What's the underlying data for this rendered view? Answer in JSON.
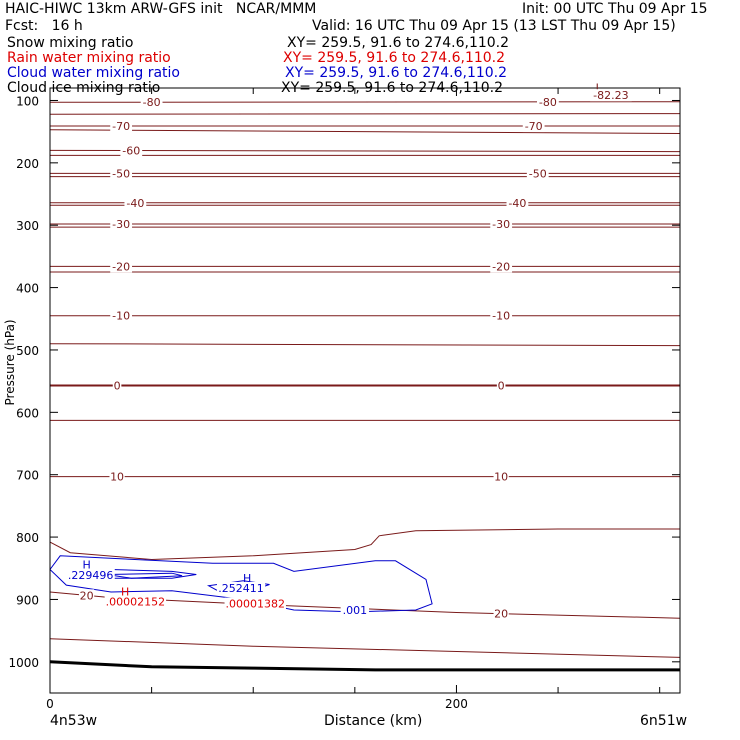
{
  "header": {
    "title_left": "HAIC-HIWC 13km ARW-GFS init   NCAR/MMM",
    "init": "Init: 00 UTC Thu 09 Apr 15",
    "fcst": "Fcst:   16 h",
    "valid": "Valid: 16 UTC Thu 09 Apr 15 (13 LST Thu 09 Apr 15)"
  },
  "legend": [
    {
      "label": "Snow mixing ratio",
      "xy": "XY= 259.5, 91.6 to 274.6,110.2",
      "color": "#000000"
    },
    {
      "label": "Rain water mixing ratio",
      "xy": "XY= 259.5, 91.6 to 274.6,110.2",
      "color": "#dd0000"
    },
    {
      "label": "Cloud water mixing ratio",
      "xy": "XY= 259.5, 91.6 to 274.6,110.2",
      "color": "#0000cc"
    },
    {
      "label": "Cloud ice mixing ratio",
      "xy": "XY= 259.5, 91.6 to 274.6,110.2",
      "color": "#000000"
    }
  ],
  "colors": {
    "temperature": "#7a1a1a",
    "rain": "#dd0000",
    "cloud_water": "#0000cc",
    "ground": "#000000"
  },
  "chart_data": {
    "type": "line",
    "xlabel": "Distance (km)",
    "ylabel": "Pressure (hPa)",
    "xlim": [
      0,
      310
    ],
    "ylim": [
      1050,
      80
    ],
    "x_ticks": [
      "0",
      "200"
    ],
    "x_tick_values": [
      0,
      200
    ],
    "x_minor_ticks": [
      50,
      100,
      150,
      250,
      300
    ],
    "y_ticks": [
      "100",
      "200",
      "300",
      "400",
      "500",
      "600",
      "700",
      "800",
      "900",
      "1000"
    ],
    "y_tick_values": [
      100,
      200,
      300,
      400,
      500,
      600,
      700,
      800,
      900,
      1000
    ],
    "endpoints": [
      "4n53w",
      "6n51w"
    ],
    "isotherms": [
      {
        "level": -80,
        "labels": [
          "-80",
          "-80"
        ],
        "label_x": [
          50,
          245
        ],
        "points": [
          [
            0,
            103
          ],
          [
            310,
            102
          ]
        ]
      },
      {
        "level": -75,
        "labels": [],
        "label_x": [],
        "points": [
          [
            0,
            122
          ],
          [
            310,
            121
          ]
        ]
      },
      {
        "level": -70,
        "labels": [
          "-70",
          "-70"
        ],
        "label_x": [
          35,
          238
        ],
        "points": [
          [
            0,
            141
          ],
          [
            310,
            141
          ]
        ]
      },
      {
        "level": -65,
        "labels": [],
        "label_x": [],
        "points": [
          [
            0,
            147
          ],
          [
            310,
            153
          ]
        ]
      },
      {
        "level": -60,
        "labels": [
          "-60"
        ],
        "label_x": [
          40
        ],
        "points": [
          [
            0,
            180
          ],
          [
            310,
            182
          ]
        ]
      },
      {
        "level": -55,
        "labels": [],
        "label_x": [],
        "points": [
          [
            0,
            188
          ],
          [
            310,
            188
          ]
        ]
      },
      {
        "level": -50,
        "labels": [
          "-50",
          "-50"
        ],
        "label_x": [
          35,
          240
        ],
        "points": [
          [
            0,
            217
          ],
          [
            310,
            217
          ]
        ]
      },
      {
        "level": -45,
        "labels": [],
        "label_x": [],
        "points": [
          [
            0,
            222
          ],
          [
            310,
            222
          ]
        ]
      },
      {
        "level": -40,
        "labels": [
          "-40",
          "-40"
        ],
        "label_x": [
          42,
          230
        ],
        "points": [
          [
            0,
            264
          ],
          [
            310,
            264
          ]
        ]
      },
      {
        "level": -35,
        "labels": [],
        "label_x": [],
        "points": [
          [
            0,
            268
          ],
          [
            310,
            268
          ]
        ]
      },
      {
        "level": -30,
        "labels": [
          "-30",
          "-30"
        ],
        "label_x": [
          35,
          222
        ],
        "points": [
          [
            0,
            298
          ],
          [
            310,
            298
          ]
        ]
      },
      {
        "level": -25,
        "labels": [],
        "label_x": [],
        "points": [
          [
            0,
            303
          ],
          [
            310,
            303
          ]
        ]
      },
      {
        "level": -20,
        "labels": [
          "-20",
          "-20"
        ],
        "label_x": [
          35,
          222
        ],
        "points": [
          [
            0,
            366
          ],
          [
            310,
            366
          ]
        ]
      },
      {
        "level": -15,
        "labels": [],
        "label_x": [],
        "points": [
          [
            0,
            375
          ],
          [
            310,
            375
          ]
        ]
      },
      {
        "level": -10,
        "labels": [
          "-10",
          "-10"
        ],
        "label_x": [
          35,
          222
        ],
        "points": [
          [
            0,
            445
          ],
          [
            310,
            445
          ]
        ]
      },
      {
        "level": -5,
        "labels": [],
        "label_x": [],
        "points": [
          [
            0,
            490
          ],
          [
            310,
            493
          ]
        ]
      },
      {
        "level": 0,
        "labels": [
          "0",
          "0"
        ],
        "label_x": [
          33,
          222
        ],
        "points": [
          [
            0,
            557
          ],
          [
            310,
            557
          ]
        ]
      },
      {
        "level": 5,
        "labels": [],
        "label_x": [],
        "points": [
          [
            0,
            613
          ],
          [
            310,
            613
          ]
        ]
      },
      {
        "level": 10,
        "labels": [
          "10",
          "10"
        ],
        "label_x": [
          33,
          222
        ],
        "points": [
          [
            0,
            703
          ],
          [
            310,
            703
          ]
        ]
      },
      {
        "level": 15,
        "labels": [],
        "label_x": [],
        "points": [
          [
            0,
            808
          ],
          [
            10,
            825
          ],
          [
            50,
            836
          ],
          [
            100,
            830
          ],
          [
            150,
            820
          ],
          [
            158,
            812
          ],
          [
            162,
            798
          ],
          [
            180,
            790
          ],
          [
            250,
            787
          ],
          [
            310,
            787
          ]
        ]
      },
      {
        "level": 20,
        "labels": [
          "20",
          "20"
        ],
        "label_x": [
          18,
          222
        ],
        "points": [
          [
            0,
            888
          ],
          [
            30,
            897
          ],
          [
            100,
            908
          ],
          [
            200,
            921
          ],
          [
            310,
            930
          ]
        ]
      },
      {
        "level": 25,
        "labels": [],
        "label_x": [],
        "points": [
          [
            0,
            963
          ],
          [
            100,
            975
          ],
          [
            310,
            993
          ]
        ]
      }
    ],
    "isotherm_extrema": [
      {
        "label": "L",
        "value": "-82.23"
      }
    ],
    "surface_pressure": [
      [
        0,
        1000
      ],
      [
        50,
        1008
      ],
      [
        100,
        1010
      ],
      [
        160,
        1013
      ],
      [
        310,
        1013
      ]
    ],
    "cloud_water": {
      "max_labels": [
        {
          "label": "H",
          "value": ".229496"
        },
        {
          "label": "H",
          "value": ".252411"
        }
      ],
      "contour_labels": [
        ".001"
      ],
      "outer_contour": [
        [
          0,
          852
        ],
        [
          5,
          830
        ],
        [
          80,
          842
        ],
        [
          110,
          842
        ],
        [
          120,
          855
        ],
        [
          160,
          838
        ],
        [
          170,
          838
        ],
        [
          185,
          868
        ],
        [
          188,
          907
        ],
        [
          180,
          917
        ],
        [
          150,
          920
        ],
        [
          120,
          917
        ],
        [
          110,
          910
        ],
        [
          90,
          898
        ],
        [
          60,
          886
        ],
        [
          30,
          888
        ],
        [
          8,
          877
        ]
      ],
      "inner_contours": [
        [
          [
            20,
            858
          ],
          [
            30,
            852
          ],
          [
            60,
            855
          ],
          [
            72,
            860
          ],
          [
            60,
            866
          ],
          [
            30,
            866
          ]
        ],
        [
          [
            28,
            860
          ],
          [
            60,
            858
          ],
          [
            65,
            862
          ],
          [
            40,
            866
          ]
        ],
        [
          [
            78,
            878
          ],
          [
            95,
            870
          ],
          [
            108,
            876
          ],
          [
            100,
            885
          ],
          [
            82,
            885
          ]
        ]
      ]
    },
    "rain_water": {
      "max_labels": [
        {
          "label": "H",
          "value": ".00002152"
        },
        {
          "label": "H",
          "value": ".00001382"
        }
      ]
    }
  }
}
